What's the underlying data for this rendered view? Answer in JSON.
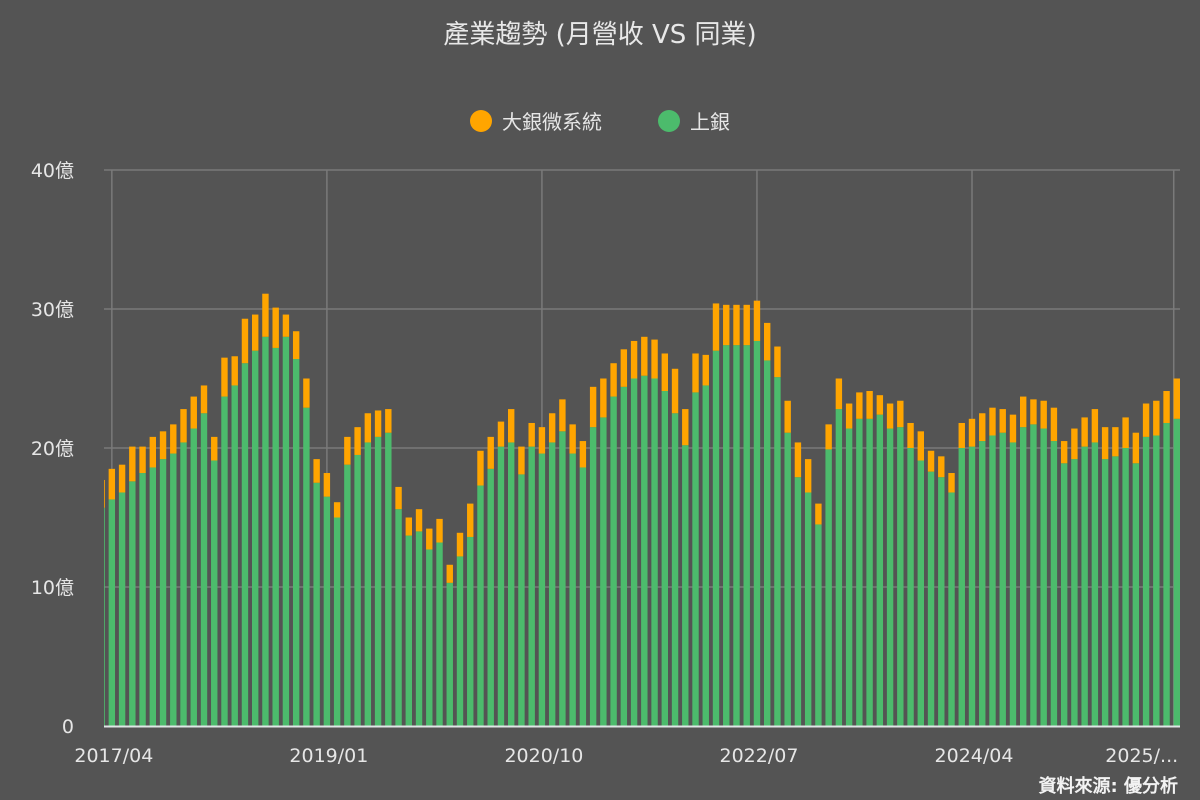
{
  "chart_data": {
    "type": "bar",
    "stacked": true,
    "title": "產業趨勢 (月營收 VS 同業)",
    "source": "資料來源: 優分析",
    "ylim": [
      0,
      40
    ],
    "yticks": [
      0,
      10,
      20,
      30,
      40
    ],
    "ytick_labels": [
      "0",
      "10億",
      "20億",
      "30億",
      "40億"
    ],
    "xtick_labels": [
      "2017/04",
      "2019/01",
      "2020/10",
      "2022/07",
      "2024/04",
      "2025/..."
    ],
    "grid": true,
    "legend_position": "top",
    "unit": "億",
    "categories": [
      "2017/03",
      "2017/04",
      "2017/05",
      "2017/06",
      "2017/07",
      "2017/08",
      "2017/09",
      "2017/10",
      "2017/11",
      "2017/12",
      "2018/01",
      "2018/02",
      "2018/03",
      "2018/04",
      "2018/05",
      "2018/06",
      "2018/07",
      "2018/08",
      "2018/09",
      "2018/10",
      "2018/11",
      "2018/12",
      "2019/01",
      "2019/02",
      "2019/03",
      "2019/04",
      "2019/05",
      "2019/06",
      "2019/07",
      "2019/08",
      "2019/09",
      "2019/10",
      "2019/11",
      "2019/12",
      "2020/01",
      "2020/02",
      "2020/03",
      "2020/04",
      "2020/05",
      "2020/06",
      "2020/07",
      "2020/08",
      "2020/09",
      "2020/10",
      "2020/11",
      "2020/12",
      "2021/01",
      "2021/02",
      "2021/03",
      "2021/04",
      "2021/05",
      "2021/06",
      "2021/07",
      "2021/08",
      "2021/09",
      "2021/10",
      "2021/11",
      "2021/12",
      "2022/01",
      "2022/02",
      "2022/03",
      "2022/04",
      "2022/05",
      "2022/06",
      "2022/07",
      "2022/08",
      "2022/09",
      "2022/10",
      "2022/11",
      "2022/12",
      "2023/01",
      "2023/02",
      "2023/03",
      "2023/04",
      "2023/05",
      "2023/06",
      "2023/07",
      "2023/08",
      "2023/09",
      "2023/10",
      "2023/11",
      "2023/12",
      "2024/01",
      "2024/02",
      "2024/03",
      "2024/04",
      "2024/05",
      "2024/06",
      "2024/07",
      "2024/08",
      "2024/09",
      "2024/10",
      "2024/11",
      "2024/12",
      "2025/01",
      "2025/02",
      "2025/03",
      "2025/04",
      "2025/05",
      "2025/06",
      "2025/07",
      "2025/08",
      "2025/09",
      "2025/10",
      "2025/11",
      "2025/12"
    ],
    "series": [
      {
        "name": "上銀",
        "color": "#4cbb6c",
        "values": [
          15.7,
          16.3,
          16.8,
          17.6,
          18.2,
          18.6,
          19.2,
          19.6,
          20.4,
          21.4,
          22.5,
          19.1,
          23.7,
          24.5,
          26.1,
          27.0,
          28.0,
          27.2,
          28.0,
          26.4,
          22.9,
          17.5,
          16.5,
          15.0,
          18.8,
          19.5,
          20.4,
          20.8,
          21.1,
          15.6,
          13.7,
          14.0,
          12.7,
          13.2,
          10.3,
          12.2,
          13.6,
          17.3,
          18.5,
          20.1,
          20.4,
          18.1,
          20.1,
          19.6,
          20.4,
          21.2,
          19.6,
          18.6,
          21.5,
          22.2,
          23.7,
          24.4,
          25.0,
          25.2,
          25.0,
          24.1,
          22.5,
          20.2,
          24.0,
          24.5,
          27.0,
          27.4,
          27.4,
          27.4,
          27.7,
          26.3,
          25.1,
          21.1,
          17.9,
          16.8,
          14.5,
          19.9,
          22.8,
          21.4,
          22.1,
          22.1,
          22.4,
          21.4,
          21.5,
          20.0,
          19.1,
          18.3,
          17.9,
          16.8,
          20.0,
          20.1,
          20.5,
          20.9,
          21.1,
          20.4,
          21.5,
          21.7,
          21.4,
          20.5,
          18.9,
          19.2,
          20.1,
          20.4,
          19.2,
          19.4,
          20.0,
          18.9,
          20.8,
          20.9,
          21.8,
          22.1
        ]
      },
      {
        "name": "大銀微系統",
        "color": "#ffa500",
        "values": [
          2.0,
          2.2,
          2.0,
          2.5,
          1.9,
          2.2,
          2.0,
          2.1,
          2.4,
          2.3,
          2.0,
          1.7,
          2.8,
          2.1,
          3.2,
          2.6,
          3.1,
          2.9,
          1.6,
          2.0,
          2.1,
          1.7,
          1.7,
          1.1,
          2.0,
          2.0,
          2.1,
          1.9,
          1.7,
          1.6,
          1.3,
          1.6,
          1.5,
          1.7,
          1.3,
          1.7,
          2.4,
          2.5,
          2.3,
          1.8,
          2.4,
          2.0,
          1.7,
          1.9,
          2.1,
          2.3,
          2.1,
          1.9,
          2.9,
          2.8,
          2.4,
          2.7,
          2.7,
          2.8,
          2.8,
          2.7,
          3.2,
          2.6,
          2.8,
          2.2,
          3.4,
          2.9,
          2.9,
          2.9,
          2.9,
          2.7,
          2.2,
          2.3,
          2.5,
          2.4,
          1.5,
          1.8,
          2.2,
          1.8,
          1.9,
          2.0,
          1.4,
          1.8,
          1.9,
          1.8,
          2.1,
          1.5,
          1.5,
          1.4,
          1.8,
          2.0,
          2.0,
          2.0,
          1.7,
          2.0,
          2.2,
          1.8,
          2.0,
          2.4,
          1.6,
          2.2,
          2.1,
          2.4,
          2.3,
          2.1,
          2.2,
          2.2,
          2.4,
          2.5,
          2.3,
          2.9
        ]
      }
    ]
  },
  "legend": [
    {
      "label": "大銀微系統",
      "color": "#ffa500"
    },
    {
      "label": "上銀",
      "color": "#4cbb6c"
    }
  ]
}
